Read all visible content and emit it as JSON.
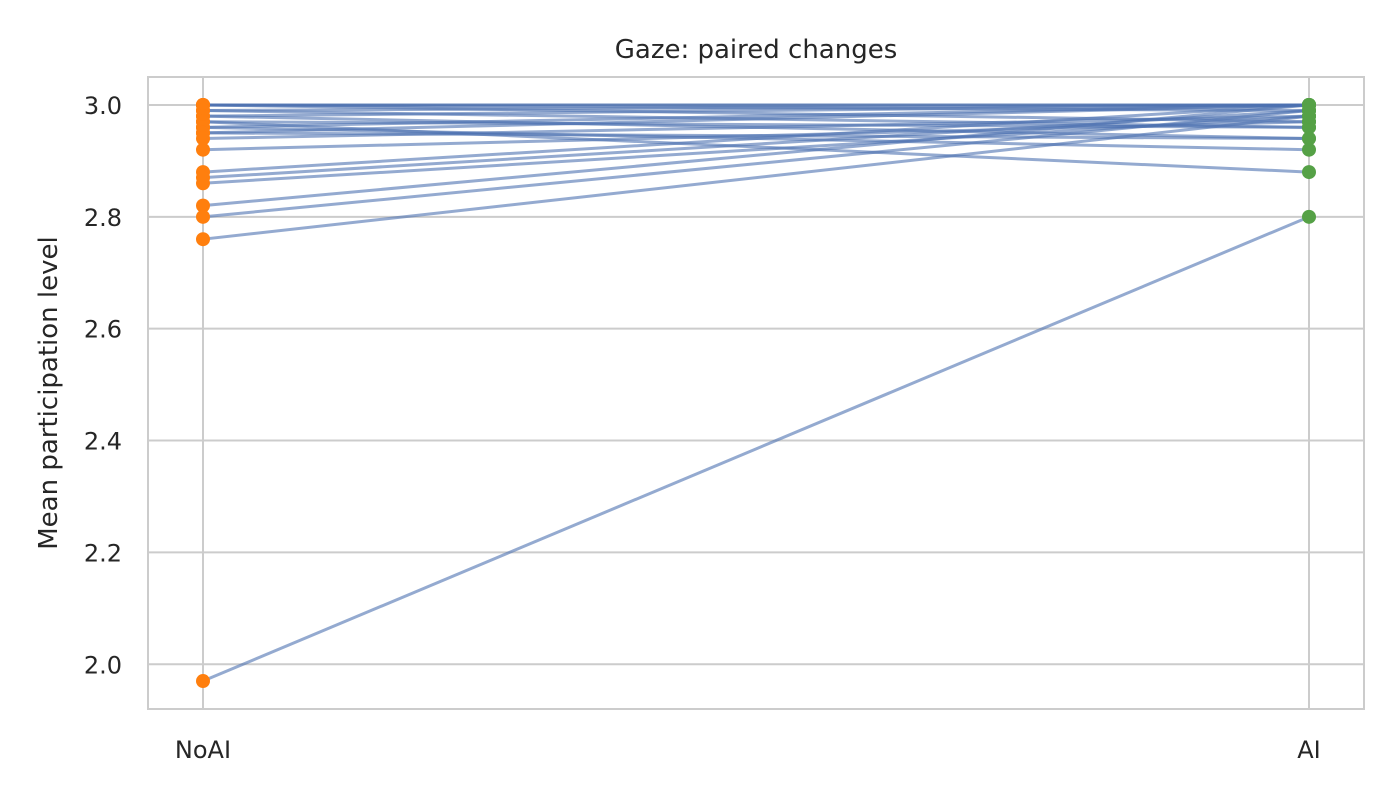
{
  "chart_data": {
    "type": "line",
    "title": "Gaze: paired changes",
    "xlabel": "",
    "ylabel": "Mean participation level",
    "categories": [
      "NoAI",
      "AI"
    ],
    "ylim": [
      1.92,
      3.05
    ],
    "yticks": [
      2.0,
      2.2,
      2.4,
      2.6,
      2.8,
      3.0
    ],
    "ytick_labels": [
      "2.0",
      "2.2",
      "2.4",
      "2.6",
      "2.8",
      "3.0"
    ],
    "grid": true,
    "legend": "none",
    "pairs": [
      [
        3.0,
        3.0
      ],
      [
        3.0,
        3.0
      ],
      [
        3.0,
        2.99
      ],
      [
        3.0,
        2.97
      ],
      [
        2.99,
        3.0
      ],
      [
        2.99,
        2.96
      ],
      [
        2.98,
        2.94
      ],
      [
        2.98,
        3.0
      ],
      [
        2.97,
        2.96
      ],
      [
        2.97,
        2.88
      ],
      [
        2.96,
        3.0
      ],
      [
        2.96,
        2.92
      ],
      [
        2.95,
        3.0
      ],
      [
        2.95,
        2.94
      ],
      [
        2.94,
        2.98
      ],
      [
        2.92,
        2.97
      ],
      [
        2.88,
        3.0
      ],
      [
        2.87,
        2.99
      ],
      [
        2.86,
        2.98
      ],
      [
        2.82,
        3.0
      ],
      [
        2.8,
        2.99
      ],
      [
        2.76,
        2.98
      ],
      [
        1.97,
        2.8
      ]
    ],
    "colors": {
      "line": "#4c72b0",
      "noai_marker": "#ff7f0e",
      "ai_marker": "#55a146",
      "grid": "#cccccc",
      "spine": "#cccccc"
    }
  }
}
